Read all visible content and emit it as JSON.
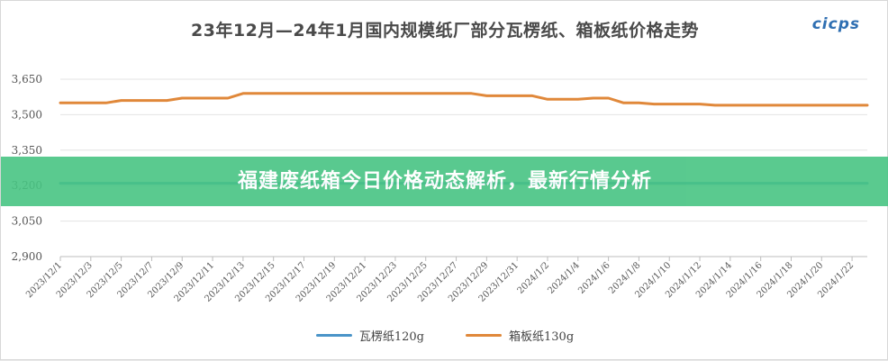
{
  "page": {
    "title": "23年12月—24年1月国内规模纸厂部分瓦楞纸、箱板纸价格走势",
    "logo": "cicps",
    "banner": "福建废纸箱今日价格动态解析，最新行情分析"
  },
  "colors": {
    "wa_leng": "#4a94c8",
    "xiang_ban": "#e0883a",
    "banner_bg": "#48c483"
  },
  "chart_data": {
    "type": "line",
    "title": "23年12月—24年1月国内规模纸厂部分瓦楞纸、箱板纸价格走势",
    "xlabel": "",
    "ylabel": "",
    "ylim": [
      2900,
      3650
    ],
    "yticks": [
      2900,
      3050,
      3200,
      3350,
      3500,
      3650
    ],
    "ytick_labels": [
      "2,900",
      "3,050",
      "3,200",
      "3,350",
      "3,500",
      "3,650"
    ],
    "x": [
      "2023/12/1",
      "2023/12/2",
      "2023/12/3",
      "2023/12/4",
      "2023/12/5",
      "2023/12/6",
      "2023/12/7",
      "2023/12/8",
      "2023/12/9",
      "2023/12/10",
      "2023/12/11",
      "2023/12/12",
      "2023/12/13",
      "2023/12/14",
      "2023/12/15",
      "2023/12/16",
      "2023/12/17",
      "2023/12/18",
      "2023/12/19",
      "2023/12/20",
      "2023/12/21",
      "2023/12/22",
      "2023/12/23",
      "2023/12/24",
      "2023/12/25",
      "2023/12/26",
      "2023/12/27",
      "2023/12/28",
      "2023/12/29",
      "2023/12/30",
      "2023/12/31",
      "2024/1/1",
      "2024/1/2",
      "2024/1/3",
      "2024/1/4",
      "2024/1/5",
      "2024/1/6",
      "2024/1/7",
      "2024/1/8",
      "2024/1/9",
      "2024/1/10",
      "2024/1/11",
      "2024/1/12",
      "2024/1/13",
      "2024/1/14",
      "2024/1/15",
      "2024/1/16",
      "2024/1/17",
      "2024/1/18",
      "2024/1/19",
      "2024/1/20",
      "2024/1/21",
      "2024/1/22",
      "2024/1/23"
    ],
    "xtick_labels": [
      "2023/12/1",
      "2023/12/3",
      "2023/12/5",
      "2023/12/7",
      "2023/12/9",
      "2023/12/11",
      "2023/12/13",
      "2023/12/15",
      "2023/12/17",
      "2023/12/19",
      "2023/12/21",
      "2023/12/23",
      "2023/12/25",
      "2023/12/27",
      "2023/12/29",
      "2023/12/31",
      "2024/1/2",
      "2024/1/4",
      "2024/1/6",
      "2024/1/8",
      "2024/1/10",
      "2024/1/12",
      "2024/1/14",
      "2024/1/16",
      "2024/1/18",
      "2024/1/20",
      "2024/1/22"
    ],
    "series": [
      {
        "name": "瓦楞纸120g",
        "color": "#4a94c8",
        "values": [
          3210,
          3210,
          3210,
          3210,
          3210,
          3210,
          3210,
          3210,
          3210,
          3210,
          3210,
          3210,
          3210,
          3210,
          3210,
          3210,
          3210,
          3210,
          3210,
          3210,
          3210,
          3210,
          3210,
          3210,
          3210,
          3210,
          3210,
          3210,
          3210,
          3210,
          3210,
          3210,
          3210,
          3210,
          3210,
          3210,
          3210,
          3210,
          3210,
          3210,
          3210,
          3210,
          3210,
          3210,
          3210,
          3210,
          3210,
          3210,
          3210,
          3210,
          3210,
          3210,
          3210,
          3210
        ]
      },
      {
        "name": "箱板纸130g",
        "color": "#e0883a",
        "values": [
          3550,
          3550,
          3550,
          3550,
          3560,
          3560,
          3560,
          3560,
          3570,
          3570,
          3570,
          3570,
          3590,
          3590,
          3590,
          3590,
          3590,
          3590,
          3590,
          3590,
          3590,
          3590,
          3590,
          3590,
          3590,
          3590,
          3590,
          3590,
          3580,
          3580,
          3580,
          3580,
          3565,
          3565,
          3565,
          3570,
          3570,
          3550,
          3550,
          3545,
          3545,
          3545,
          3545,
          3540,
          3540,
          3540,
          3540,
          3540,
          3540,
          3540,
          3540,
          3540,
          3540,
          3540
        ]
      }
    ],
    "grid": true,
    "legend": "bottom-center"
  }
}
